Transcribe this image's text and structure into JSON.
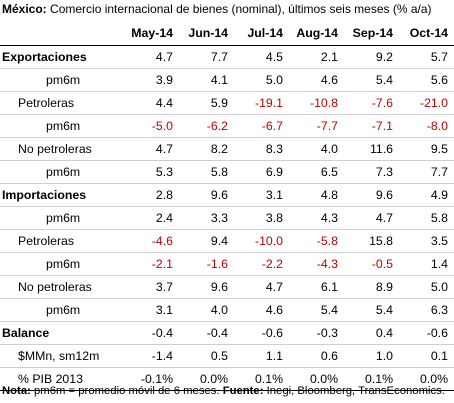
{
  "title": {
    "bold": "México:",
    "text": " Comercio internacional de bienes (nominal), últimos seis meses (% a/a)"
  },
  "columns": [
    "May-14",
    "Jun-14",
    "Jul-14",
    "Aug-14",
    "Sep-14",
    "Oct-14"
  ],
  "rows": [
    {
      "label": "Exportaciones",
      "level": 0,
      "values": [
        "4.7",
        "7.7",
        "4.5",
        "2.1",
        "9.2",
        "5.7"
      ]
    },
    {
      "label": "pm6m",
      "level": 2,
      "values": [
        "3.9",
        "4.1",
        "5.0",
        "4.6",
        "5.4",
        "5.6"
      ]
    },
    {
      "label": "Petroleras",
      "level": 1,
      "values": [
        "4.4",
        "5.9",
        "-19.1",
        "-10.8",
        "-7.6",
        "-21.0"
      ]
    },
    {
      "label": "pm6m",
      "level": 2,
      "values": [
        "-5.0",
        "-6.2",
        "-6.7",
        "-7.7",
        "-7.1",
        "-8.0"
      ]
    },
    {
      "label": "No petroleras",
      "level": 1,
      "values": [
        "4.7",
        "8.2",
        "8.3",
        "4.0",
        "11.6",
        "9.5"
      ]
    },
    {
      "label": "pm6m",
      "level": 2,
      "values": [
        "5.3",
        "5.8",
        "6.9",
        "6.5",
        "7.3",
        "7.7"
      ]
    },
    {
      "label": "Importaciones",
      "level": 0,
      "values": [
        "2.8",
        "9.6",
        "3.1",
        "4.8",
        "9.6",
        "4.9"
      ]
    },
    {
      "label": "pm6m",
      "level": 2,
      "values": [
        "2.4",
        "3.3",
        "3.8",
        "4.3",
        "4.7",
        "5.8"
      ]
    },
    {
      "label": "Petroleras",
      "level": 1,
      "values": [
        "-4.6",
        "9.4",
        "-10.0",
        "-5.8",
        "15.8",
        "3.5"
      ]
    },
    {
      "label": "pm6m",
      "level": 2,
      "values": [
        "-2.1",
        "-1.6",
        "-2.2",
        "-4.3",
        "-0.5",
        "1.4"
      ]
    },
    {
      "label": "No petroleras",
      "level": 1,
      "values": [
        "3.7",
        "9.6",
        "4.7",
        "6.1",
        "8.9",
        "5.0"
      ]
    },
    {
      "label": "pm6m",
      "level": 2,
      "values": [
        "3.1",
        "4.0",
        "4.6",
        "5.4",
        "5.4",
        "6.3"
      ]
    },
    {
      "label": "Balance",
      "level": 0,
      "values": [
        "-0.4",
        "-0.4",
        "-0.6",
        "-0.3",
        "0.4",
        "-0.6"
      ]
    },
    {
      "label": "$MMn, sm12m",
      "level": 1,
      "values": [
        "-1.4",
        "0.5",
        "1.1",
        "0.6",
        "1.0",
        "0.1"
      ]
    },
    {
      "label": "% PIB 2013",
      "level": 1,
      "values": [
        "-0.1%",
        "0.0%",
        "0.1%",
        "0.0%",
        "0.1%",
        "0.0%"
      ]
    }
  ],
  "note": {
    "label1": "Nota:",
    "text1": " pm6m = promedio móvil de 6 meses. ",
    "label2": "Fuente:",
    "text2": " Inegi, Bloomberg, TransEconomics."
  },
  "colors": {
    "negative": "#c00000",
    "text": "#000000"
  }
}
